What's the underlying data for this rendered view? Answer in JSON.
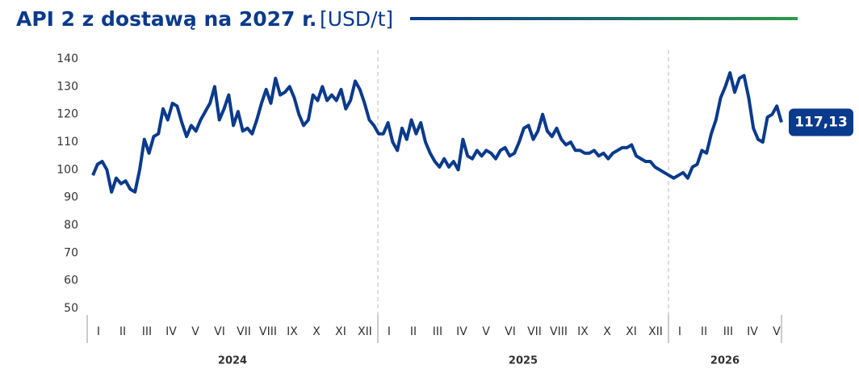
{
  "chart_data": {
    "type": "line",
    "title": "API 2 z dostawą na 2027 r.",
    "unit": "[USD/t]",
    "ylim": [
      50,
      140
    ],
    "yticks": [
      50,
      60,
      70,
      80,
      90,
      100,
      110,
      120,
      130,
      140
    ],
    "grid": false,
    "years": [
      {
        "label": "2024",
        "months": [
          "I",
          "II",
          "III",
          "IV",
          "V",
          "VI",
          "VII",
          "VIII",
          "IX",
          "X",
          "XI",
          "XII"
        ]
      },
      {
        "label": "2025",
        "months": [
          "I",
          "II",
          "III",
          "IV",
          "V",
          "VI",
          "VII",
          "VIII",
          "IX",
          "X",
          "XI",
          "XII"
        ]
      },
      {
        "label": "2026",
        "months": [
          "I",
          "II",
          "III",
          "IV",
          "V"
        ]
      }
    ],
    "series": [
      {
        "name": "API 2",
        "color": "#0a3a8c",
        "last_label": "117,13",
        "values": [
          98,
          102,
          103,
          100,
          92,
          97,
          95,
          96,
          93,
          92,
          100,
          111,
          106,
          112,
          113,
          122,
          118,
          124,
          123,
          117,
          112,
          116,
          114,
          118,
          121,
          124,
          130,
          118,
          122,
          127,
          116,
          121,
          114,
          115,
          113,
          118,
          124,
          129,
          124,
          133,
          127,
          128,
          130,
          126,
          120,
          116,
          118,
          127,
          125,
          130,
          125,
          127,
          125,
          129,
          122,
          125,
          132,
          129,
          124,
          118,
          116,
          113,
          113,
          117,
          110,
          107,
          115,
          111,
          118,
          113,
          117,
          110,
          106,
          103,
          101,
          104,
          101,
          103,
          100,
          111,
          105,
          104,
          107,
          105,
          107,
          106,
          104,
          107,
          108,
          105,
          106,
          110,
          115,
          116,
          111,
          114,
          120,
          114,
          112,
          115,
          111,
          109,
          110,
          107,
          107,
          106,
          106,
          107,
          105,
          106,
          104,
          106,
          107,
          108,
          108,
          109,
          105,
          104,
          103,
          103,
          101,
          100,
          99,
          98,
          97,
          98,
          99,
          97,
          101,
          102,
          107,
          106,
          113,
          118,
          126,
          130,
          135,
          128,
          133,
          134,
          126,
          115,
          111,
          110,
          119,
          120,
          123,
          117.13
        ]
      }
    ]
  }
}
